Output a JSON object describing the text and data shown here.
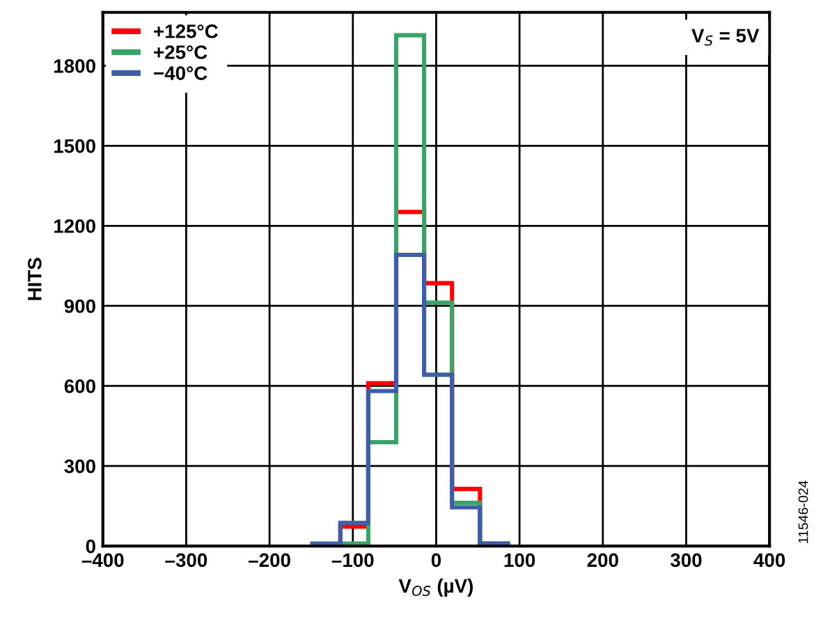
{
  "chart_data": {
    "type": "histogram",
    "xlabel": "V$_{OS}$ (µV)",
    "ylabel": "HITS",
    "bins": [
      -148.5,
      -115,
      -81.5,
      -48,
      -14.5,
      19,
      52.5,
      86
    ],
    "series": [
      {
        "name": "+125°C",
        "color": "#ff0000",
        "values": [
          5,
          73,
          610,
          1252,
          985,
          214,
          8
        ]
      },
      {
        "name": "+25°C",
        "color": "#3aa36a",
        "values": [
          5,
          9,
          389,
          1914,
          912,
          162,
          8
        ]
      },
      {
        "name": "−40°C",
        "color": "#3f5ea8",
        "values": [
          9,
          87,
          581,
          1091,
          642,
          145,
          10
        ]
      }
    ],
    "xlim": [
      -400,
      400
    ],
    "xticks": [
      {
        "value": -400,
        "label": "–400"
      },
      {
        "value": -300,
        "label": "–300"
      },
      {
        "value": -200,
        "label": "–200"
      },
      {
        "value": -100,
        "label": "–100"
      },
      0,
      100,
      200,
      300,
      400
    ],
    "ylim": [
      0,
      2000
    ],
    "yticks": [
      0,
      300,
      600,
      900,
      1200,
      1500,
      1800
    ],
    "grid": true,
    "legend": "top left",
    "annotations": [
      "V$_{S}$ = 5V",
      "11546-024"
    ]
  }
}
